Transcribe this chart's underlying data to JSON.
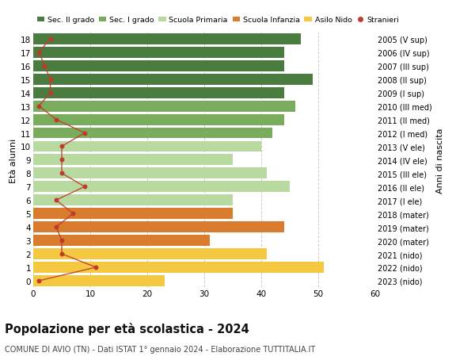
{
  "ages": [
    18,
    17,
    16,
    15,
    14,
    13,
    12,
    11,
    10,
    9,
    8,
    7,
    6,
    5,
    4,
    3,
    2,
    1,
    0
  ],
  "years": [
    "2005 (V sup)",
    "2006 (IV sup)",
    "2007 (III sup)",
    "2008 (II sup)",
    "2009 (I sup)",
    "2010 (III med)",
    "2011 (II med)",
    "2012 (I med)",
    "2013 (V ele)",
    "2014 (IV ele)",
    "2015 (III ele)",
    "2016 (II ele)",
    "2017 (I ele)",
    "2018 (mater)",
    "2019 (mater)",
    "2020 (mater)",
    "2021 (nido)",
    "2022 (nido)",
    "2023 (nido)"
  ],
  "bar_values": [
    47,
    44,
    44,
    49,
    44,
    46,
    44,
    42,
    40,
    35,
    41,
    45,
    35,
    35,
    44,
    31,
    41,
    51,
    23
  ],
  "bar_colors": [
    "#4a7c3f",
    "#4a7c3f",
    "#4a7c3f",
    "#4a7c3f",
    "#4a7c3f",
    "#7aac5e",
    "#7aac5e",
    "#7aac5e",
    "#b8d9a0",
    "#b8d9a0",
    "#b8d9a0",
    "#b8d9a0",
    "#b8d9a0",
    "#d97c2e",
    "#d97c2e",
    "#d97c2e",
    "#f5c842",
    "#f5c842",
    "#f5c842"
  ],
  "stranieri": [
    3,
    1,
    2,
    3,
    3,
    1,
    4,
    9,
    5,
    5,
    5,
    9,
    4,
    7,
    4,
    5,
    5,
    11,
    1
  ],
  "legend_labels": [
    "Sec. II grado",
    "Sec. I grado",
    "Scuola Primaria",
    "Scuola Infanzia",
    "Asilo Nido",
    "Stranieri"
  ],
  "legend_colors": [
    "#4a7c3f",
    "#7aac5e",
    "#b8d9a0",
    "#d97c2e",
    "#f5c842",
    "#c0392b"
  ],
  "title": "Popolazione per età scolastica - 2024",
  "subtitle": "COMUNE DI AVIO (TN) - Dati ISTAT 1° gennaio 2024 - Elaborazione TUTTITALIA.IT",
  "ylabel_left": "Età alunni",
  "ylabel_right": "Anni di nascita",
  "xlim": [
    0,
    60
  ],
  "xticks": [
    0,
    10,
    20,
    30,
    40,
    50,
    60
  ],
  "background_color": "#ffffff",
  "grid_color": "#cccccc",
  "stranieri_color": "#c0392b"
}
